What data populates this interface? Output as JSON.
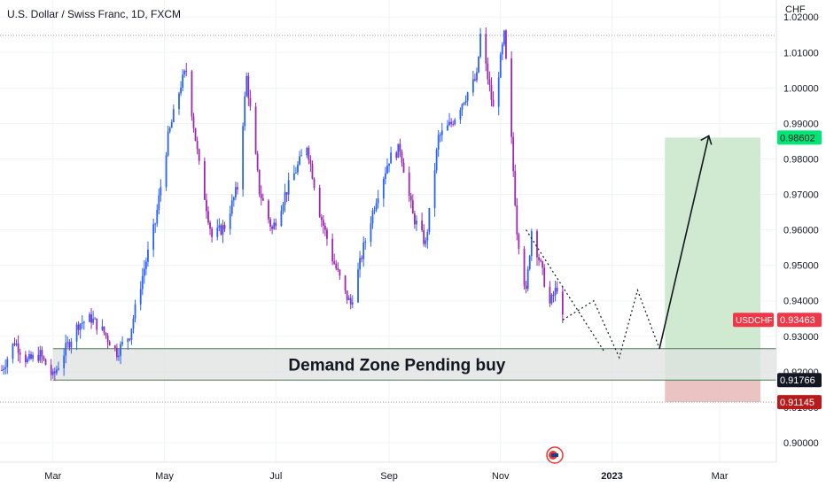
{
  "header": {
    "title": "U.S. Dollar / Swiss Franc, 1D, FXCM",
    "currency": "CHF"
  },
  "colors": {
    "up": "#2962ff",
    "down": "#9c27b0",
    "target_zone": "#c8e6c9",
    "stop_zone": "#e6b8b8",
    "demand_zone": "#dde2e0",
    "price_label": "#f23645",
    "target_label": "#00e676",
    "stop_label": "#b71c1c",
    "zone_label": "#131722"
  },
  "chart_data": {
    "type": "candlestick",
    "symbol": "USDCHF",
    "y_axis": {
      "range": [
        0.8945,
        1.0248
      ],
      "ticks": [
        "1.02000",
        "1.01000",
        "1.00000",
        "0.99000",
        "0.98000",
        "0.97000",
        "0.96000",
        "0.95000",
        "0.94000",
        "0.93000",
        "0.92000",
        "0.91000",
        "0.90000"
      ]
    },
    "x_axis": {
      "labels": [
        "Mar",
        "May",
        "Jul",
        "Sep",
        "Nov",
        "2023",
        "Mar"
      ]
    },
    "price_path": [
      [
        "2022-02-01",
        0.9205
      ],
      [
        "2022-02-08",
        0.9285
      ],
      [
        "2022-02-15",
        0.923
      ],
      [
        "2022-02-22",
        0.9248
      ],
      [
        "2022-03-01",
        0.9185
      ],
      [
        "2022-03-08",
        0.9265
      ],
      [
        "2022-03-15",
        0.9335
      ],
      [
        "2022-03-22",
        0.935
      ],
      [
        "2022-03-29",
        0.931
      ],
      [
        "2022-04-05",
        0.9255
      ],
      [
        "2022-04-12",
        0.9305
      ],
      [
        "2022-04-19",
        0.947
      ],
      [
        "2022-04-26",
        0.962
      ],
      [
        "2022-05-03",
        0.986
      ],
      [
        "2022-05-10",
        1.001
      ],
      [
        "2022-05-13",
        1.005
      ],
      [
        "2022-05-20",
        0.978
      ],
      [
        "2022-05-27",
        0.958
      ],
      [
        "2022-06-03",
        0.961
      ],
      [
        "2022-06-10",
        0.972
      ],
      [
        "2022-06-15",
        1.003
      ],
      [
        "2022-06-22",
        0.971
      ],
      [
        "2022-06-29",
        0.96
      ],
      [
        "2022-07-06",
        0.97
      ],
      [
        "2022-07-13",
        0.978
      ],
      [
        "2022-07-18",
        0.984
      ],
      [
        "2022-07-25",
        0.965
      ],
      [
        "2022-08-01",
        0.952
      ],
      [
        "2022-08-08",
        0.942
      ],
      [
        "2022-08-11",
        0.939
      ],
      [
        "2022-08-18",
        0.955
      ],
      [
        "2022-08-25",
        0.969
      ],
      [
        "2022-09-01",
        0.98
      ],
      [
        "2022-09-07",
        0.983
      ],
      [
        "2022-09-14",
        0.964
      ],
      [
        "2022-09-21",
        0.956
      ],
      [
        "2022-09-28",
        0.986
      ],
      [
        "2022-10-05",
        0.99
      ],
      [
        "2022-10-12",
        0.997
      ],
      [
        "2022-10-19",
        1.003
      ],
      [
        "2022-10-21",
        1.0148
      ],
      [
        "2022-10-28",
        0.994
      ],
      [
        "2022-11-03",
        1.0147
      ],
      [
        "2022-11-07",
        0.985
      ],
      [
        "2022-11-10",
        0.96
      ],
      [
        "2022-11-15",
        0.942
      ],
      [
        "2022-11-18",
        0.96
      ],
      [
        "2022-11-22",
        0.952
      ],
      [
        "2022-11-28",
        0.939
      ],
      [
        "2022-12-02",
        0.944
      ],
      [
        "2022-12-05",
        0.9346
      ]
    ],
    "last_price": "0.93463",
    "annotations": {
      "demand_zone": {
        "label": "Demand Zone Pending buy",
        "low": 0.91766,
        "high": 0.9265
      },
      "target": {
        "value": 0.98602,
        "label": "0.98602"
      },
      "entry_label": "0.91766",
      "stop": {
        "value": 0.91145,
        "label": "0.91145"
      },
      "resistance_line": 1.0148,
      "projection_path": [
        [
          "2022-12-05",
          0.9346
        ],
        [
          "2022-12-22",
          0.94
        ],
        [
          "2023-01-05",
          0.924
        ],
        [
          "2023-01-15",
          0.943
        ],
        [
          "2023-01-27",
          0.9265
        ],
        [
          "2023-02-23",
          0.9865
        ]
      ],
      "projection_path_2": [
        [
          "2022-11-15",
          0.96
        ],
        [
          "2022-12-28",
          0.9255
        ]
      ]
    }
  }
}
